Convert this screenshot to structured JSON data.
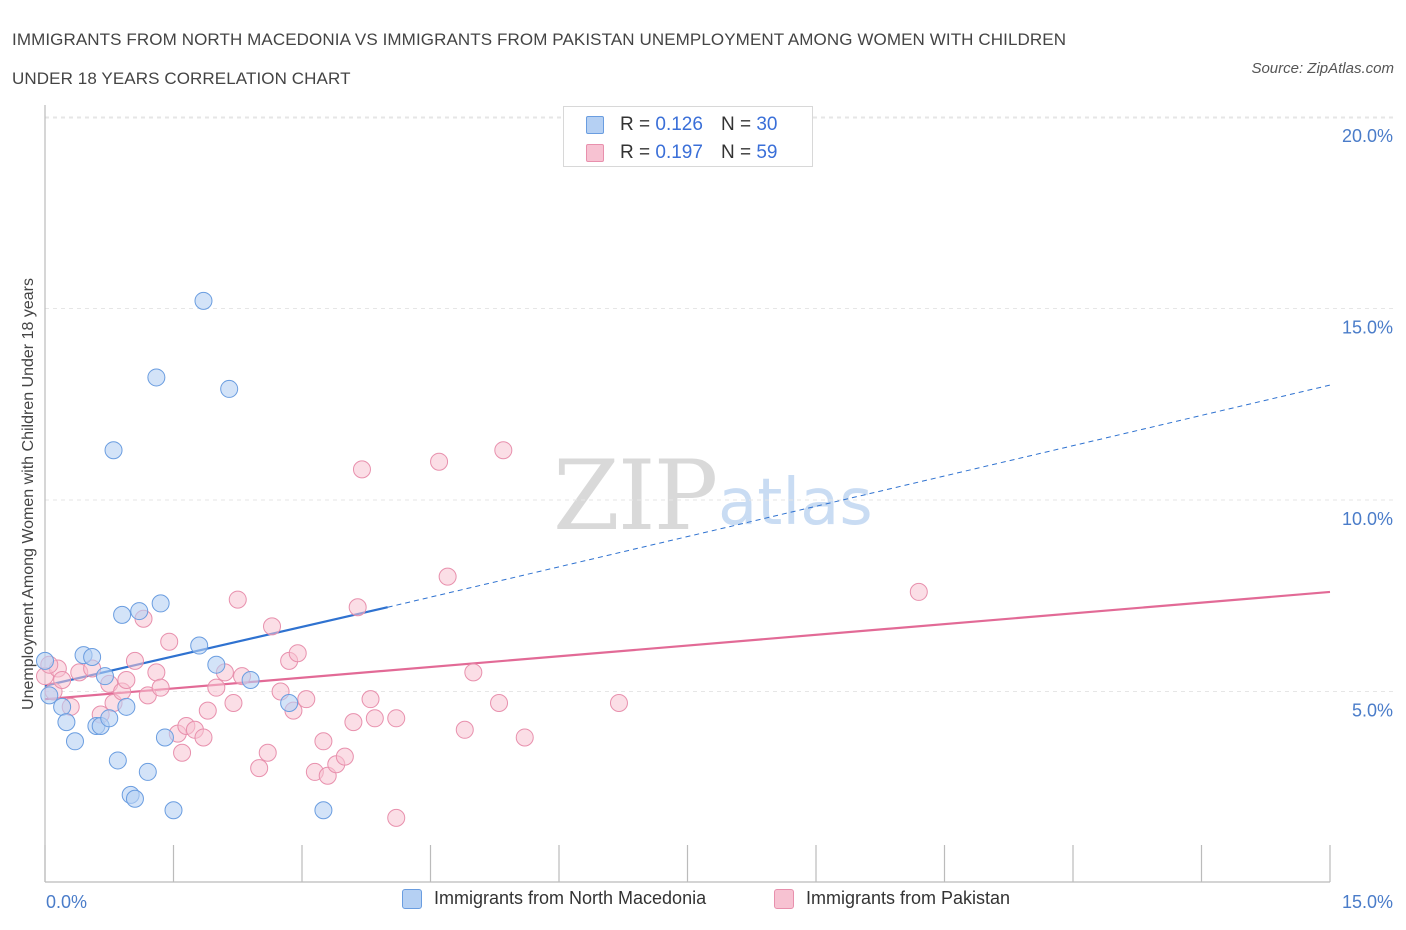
{
  "title_line1": "IMMIGRANTS FROM NORTH MACEDONIA VS IMMIGRANTS FROM PAKISTAN UNEMPLOYMENT AMONG WOMEN WITH CHILDREN",
  "title_line2": "UNDER 18 YEARS CORRELATION CHART",
  "source": "Source: ZipAtlas.com",
  "watermark": {
    "zip": "ZIP",
    "atlas": "atlas"
  },
  "legend": {
    "r_label": "R =",
    "n_label": "N =",
    "rows": [
      {
        "r": "0.126",
        "n": "30"
      },
      {
        "r": "0.197",
        "n": "59"
      }
    ]
  },
  "colors": {
    "blue_fill": "#b5d0f3",
    "blue_stroke": "#6a9de0",
    "blue_line": "#2f72d0",
    "pink_fill": "#f7c2d2",
    "pink_stroke": "#e890ad",
    "pink_line": "#e26a96",
    "grid": "#e6e6e6",
    "tick_text": "#4a7cc9"
  },
  "chart_data": {
    "type": "scatter",
    "title": "IMMIGRANTS FROM NORTH MACEDONIA VS IMMIGRANTS FROM PAKISTAN UNEMPLOYMENT AMONG WOMEN WITH CHILDREN UNDER 18 YEARS CORRELATION CHART",
    "xlabel": "",
    "ylabel": "Unemployment Among Women with Children Under 18 years",
    "xlim": [
      0,
      15
    ],
    "ylim": [
      0,
      20
    ],
    "x_tick_labels": [
      "0.0%",
      "15.0%"
    ],
    "y_ticks": [
      5,
      10,
      15,
      20
    ],
    "y_tick_labels": [
      "5.0%",
      "10.0%",
      "15.0%",
      "20.0%"
    ],
    "grid": true,
    "series": [
      {
        "name": "Immigrants from North Macedonia",
        "points": [
          [
            0.0,
            5.8
          ],
          [
            0.05,
            4.9
          ],
          [
            0.2,
            4.6
          ],
          [
            0.25,
            4.2
          ],
          [
            0.35,
            3.7
          ],
          [
            0.45,
            5.95
          ],
          [
            0.55,
            5.9
          ],
          [
            0.6,
            4.1
          ],
          [
            0.65,
            4.1
          ],
          [
            0.7,
            5.4
          ],
          [
            0.75,
            4.3
          ],
          [
            0.8,
            11.3
          ],
          [
            0.85,
            3.2
          ],
          [
            0.9,
            7.0
          ],
          [
            0.95,
            4.6
          ],
          [
            1.0,
            2.3
          ],
          [
            1.05,
            2.2
          ],
          [
            1.1,
            7.1
          ],
          [
            1.2,
            2.9
          ],
          [
            1.3,
            13.2
          ],
          [
            1.35,
            7.3
          ],
          [
            1.4,
            3.8
          ],
          [
            1.5,
            1.9
          ],
          [
            1.8,
            6.2
          ],
          [
            1.85,
            15.2
          ],
          [
            2.0,
            5.7
          ],
          [
            2.15,
            12.9
          ],
          [
            2.4,
            5.3
          ],
          [
            2.85,
            4.7
          ],
          [
            3.25,
            1.9
          ]
        ],
        "trend": {
          "x": [
            0.0,
            4.0
          ],
          "y": [
            5.15,
            7.2
          ],
          "extended_to": [
            15.0,
            13.0
          ]
        }
      },
      {
        "name": "Immigrants from Pakistan",
        "points": [
          [
            0.0,
            5.4
          ],
          [
            0.1,
            5.0
          ],
          [
            0.15,
            5.6
          ],
          [
            0.2,
            5.3
          ],
          [
            0.3,
            4.6
          ],
          [
            0.4,
            5.5
          ],
          [
            0.55,
            5.6
          ],
          [
            0.65,
            4.4
          ],
          [
            0.75,
            5.2
          ],
          [
            0.8,
            4.7
          ],
          [
            0.9,
            5.0
          ],
          [
            0.95,
            5.3
          ],
          [
            1.05,
            5.8
          ],
          [
            1.15,
            6.9
          ],
          [
            1.2,
            4.9
          ],
          [
            1.3,
            5.5
          ],
          [
            1.35,
            5.1
          ],
          [
            1.45,
            6.3
          ],
          [
            1.55,
            3.9
          ],
          [
            1.6,
            3.4
          ],
          [
            1.65,
            4.1
          ],
          [
            1.75,
            4.0
          ],
          [
            1.85,
            3.8
          ],
          [
            1.9,
            4.5
          ],
          [
            2.0,
            5.1
          ],
          [
            2.1,
            5.5
          ],
          [
            2.2,
            4.7
          ],
          [
            2.25,
            7.4
          ],
          [
            2.3,
            5.4
          ],
          [
            2.5,
            3.0
          ],
          [
            2.6,
            3.4
          ],
          [
            2.65,
            6.7
          ],
          [
            2.75,
            5.0
          ],
          [
            2.85,
            5.8
          ],
          [
            2.9,
            4.5
          ],
          [
            2.95,
            6.0
          ],
          [
            3.05,
            4.8
          ],
          [
            3.15,
            2.9
          ],
          [
            3.25,
            3.7
          ],
          [
            3.3,
            2.8
          ],
          [
            3.4,
            3.1
          ],
          [
            3.5,
            3.3
          ],
          [
            3.6,
            4.2
          ],
          [
            3.65,
            7.2
          ],
          [
            3.7,
            10.8
          ],
          [
            3.8,
            4.8
          ],
          [
            3.85,
            4.3
          ],
          [
            4.1,
            4.3
          ],
          [
            4.1,
            1.7
          ],
          [
            4.6,
            11.0
          ],
          [
            4.7,
            8.0
          ],
          [
            4.9,
            4.0
          ],
          [
            5.0,
            5.5
          ],
          [
            5.3,
            4.7
          ],
          [
            5.35,
            11.3
          ],
          [
            5.6,
            3.8
          ],
          [
            6.7,
            4.7
          ],
          [
            10.2,
            7.6
          ],
          [
            0.05,
            5.7
          ]
        ],
        "trend": {
          "x": [
            0.0,
            15.0
          ],
          "y": [
            4.8,
            7.6
          ]
        }
      }
    ]
  }
}
